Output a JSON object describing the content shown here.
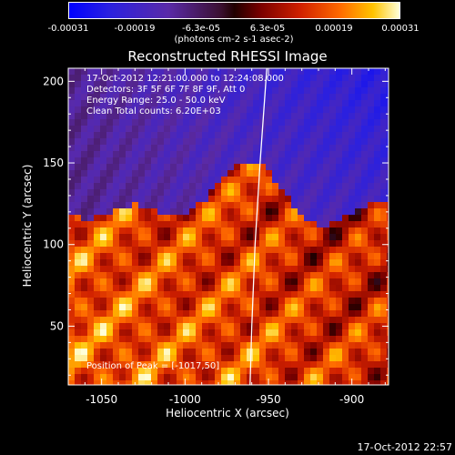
{
  "colorbar": {
    "tick_labels": [
      "-0.00031",
      "-0.00019",
      "-6.3e-05",
      "6.3e-05",
      "0.00019",
      "0.00031"
    ],
    "units_label": "(photons cm-2 s-1 asec-2)",
    "range": [
      -0.00031,
      0.00031
    ]
  },
  "annotations": {
    "time_range": "17-Oct-2012 12:21:00.000 to 12:24:08.000",
    "detectors": "Detectors: 3F 5F 6F 7F 8F 9F, Att 0",
    "energy": "Energy Range: 25.0 - 50.0 keV",
    "algorithm": "Clean     Total counts: 6.20E+03",
    "peak": "Position of Peak = [-1017,50]"
  },
  "footer_timestamp": "17-Oct-2012 22:57",
  "chart_data": {
    "type": "heatmap",
    "title": "Reconstructed RHESSI Image",
    "xlabel": "Heliocentric X (arcsec)",
    "ylabel": "Heliocentric Y (arcsec)",
    "xlim": [
      -1070,
      -878
    ],
    "ylim": [
      14,
      208
    ],
    "x_ticks": [
      -1050,
      -1000,
      -950,
      -900
    ],
    "y_ticks": [
      50,
      100,
      150,
      200
    ],
    "x_tick_labels": [
      "-1050",
      "-1000",
      "-950",
      "-900"
    ],
    "y_tick_labels": [
      "50",
      "100",
      "150",
      "200"
    ],
    "limb": [
      [
        -951,
        208
      ],
      [
        -955,
        150
      ],
      [
        -958,
        100
      ],
      [
        -960,
        50
      ],
      [
        -961,
        14
      ]
    ],
    "peak": [
      -1017,
      50
    ],
    "regions": {
      "negative_low_emission": "upper part of field (y above ~140 arcsec), strongest at upper right",
      "positive_high_emission": "lower part of field (y below ~120 arcsec), brightest near lower left"
    }
  }
}
